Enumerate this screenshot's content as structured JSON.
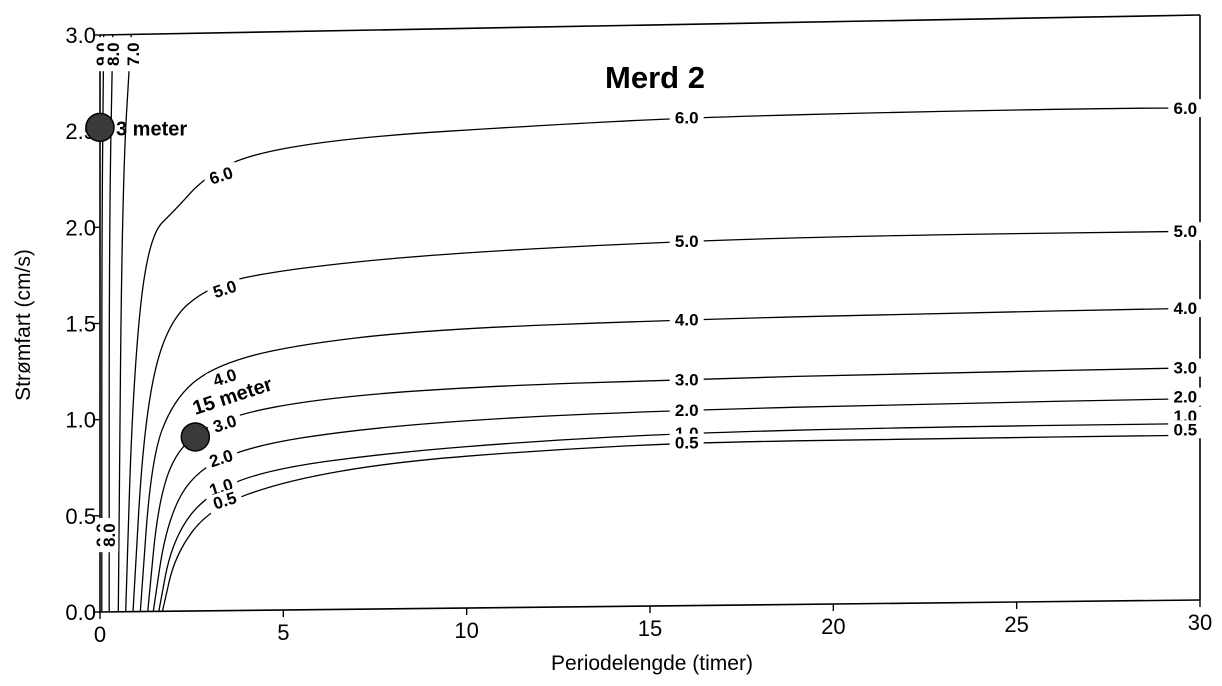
{
  "chart_data": {
    "type": "contour",
    "title": "Merd 2",
    "xlabel": "Periodelengde (timer)",
    "ylabel": "Strømfart (cm/s)",
    "xlim": [
      0,
      30
    ],
    "ylim": [
      0,
      3.0
    ],
    "x_ticks": [
      0,
      5,
      10,
      15,
      20,
      25,
      30
    ],
    "x_tick_labels": [
      "0",
      "5",
      "10",
      "15",
      "20",
      "25",
      "30"
    ],
    "y_ticks": [
      0.0,
      0.5,
      1.0,
      1.5,
      2.0,
      2.5,
      3.0
    ],
    "y_tick_labels": [
      "0.0",
      "0.5",
      "1.0",
      "1.5",
      "2.0",
      "2.5",
      "3.0"
    ],
    "grid": false,
    "contours": [
      {
        "level": "6.0",
        "points": [
          [
            0.7,
            0
          ],
          [
            0.9,
            1.2
          ],
          [
            1.3,
            1.95
          ],
          [
            2.1,
            2.1
          ],
          [
            2.8,
            2.25
          ],
          [
            4,
            2.38
          ],
          [
            7,
            2.47
          ],
          [
            12,
            2.53
          ],
          [
            16,
            2.57
          ],
          [
            22,
            2.6
          ],
          [
            28,
            2.62
          ],
          [
            30,
            2.62
          ]
        ],
        "labels": [
          {
            "text": "6.0",
            "x": 3.3,
            "y": 2.27,
            "angle": -18
          },
          {
            "text": "6.0",
            "x": 16,
            "y": 2.57,
            "angle": 0
          },
          {
            "text": "6.0",
            "x": 29.6,
            "y": 2.62,
            "angle": 0
          }
        ]
      },
      {
        "level": "5.0",
        "points": [
          [
            0.9,
            0
          ],
          [
            1.2,
            1.0
          ],
          [
            1.8,
            1.5
          ],
          [
            3,
            1.7
          ],
          [
            5,
            1.78
          ],
          [
            9,
            1.86
          ],
          [
            16,
            1.93
          ],
          [
            22,
            1.96
          ],
          [
            30,
            1.98
          ]
        ],
        "labels": [
          {
            "text": "5.0",
            "x": 3.4,
            "y": 1.68,
            "angle": -18
          },
          {
            "text": "5.0",
            "x": 16,
            "y": 1.93,
            "angle": 0
          },
          {
            "text": "5.0",
            "x": 29.6,
            "y": 1.98,
            "angle": 0
          }
        ]
      },
      {
        "level": "4.0",
        "points": [
          [
            1.1,
            0
          ],
          [
            1.4,
            0.8
          ],
          [
            2,
            1.1
          ],
          [
            3,
            1.27
          ],
          [
            5,
            1.38
          ],
          [
            9,
            1.47
          ],
          [
            16,
            1.52
          ],
          [
            22,
            1.55
          ],
          [
            30,
            1.58
          ]
        ],
        "labels": [
          {
            "text": "4.0",
            "x": 3.4,
            "y": 1.22,
            "angle": -18
          },
          {
            "text": "4.0",
            "x": 16,
            "y": 1.52,
            "angle": 0
          },
          {
            "text": "4.0",
            "x": 29.6,
            "y": 1.58,
            "angle": 0
          }
        ]
      },
      {
        "level": "3.0",
        "points": [
          [
            1.3,
            0
          ],
          [
            1.6,
            0.6
          ],
          [
            2.2,
            0.88
          ],
          [
            3.5,
            1.02
          ],
          [
            6,
            1.11
          ],
          [
            10,
            1.17
          ],
          [
            16,
            1.21
          ],
          [
            22,
            1.24
          ],
          [
            30,
            1.27
          ]
        ],
        "labels": [
          {
            "text": "3.0",
            "x": 3.4,
            "y": 0.98,
            "angle": -18
          },
          {
            "text": "3.0",
            "x": 16,
            "y": 1.21,
            "angle": 0
          },
          {
            "text": "3.0",
            "x": 29.6,
            "y": 1.27,
            "angle": 0
          }
        ]
      },
      {
        "level": "2.0",
        "points": [
          [
            1.45,
            0
          ],
          [
            1.8,
            0.45
          ],
          [
            2.5,
            0.72
          ],
          [
            4,
            0.86
          ],
          [
            7,
            0.95
          ],
          [
            11,
            1.01
          ],
          [
            16,
            1.05
          ],
          [
            22,
            1.08
          ],
          [
            30,
            1.11
          ]
        ],
        "labels": [
          {
            "text": "2.0",
            "x": 3.3,
            "y": 0.8,
            "angle": -18
          },
          {
            "text": "2.0",
            "x": 16,
            "y": 1.05,
            "angle": 0
          },
          {
            "text": "2.0",
            "x": 29.6,
            "y": 1.12,
            "angle": 0
          }
        ]
      },
      {
        "level": "1.0",
        "points": [
          [
            1.6,
            0
          ],
          [
            1.95,
            0.36
          ],
          [
            2.8,
            0.6
          ],
          [
            4.5,
            0.74
          ],
          [
            8,
            0.83
          ],
          [
            12,
            0.89
          ],
          [
            16,
            0.93
          ],
          [
            22,
            0.96
          ],
          [
            30,
            0.98
          ]
        ],
        "labels": [
          {
            "text": "1.0",
            "x": 3.3,
            "y": 0.65,
            "angle": -18
          },
          {
            "text": "1.0",
            "x": 16,
            "y": 0.93,
            "angle": 0
          },
          {
            "text": "1.0",
            "x": 29.6,
            "y": 1.02,
            "angle": 0
          }
        ]
      },
      {
        "level": "0.5",
        "points": [
          [
            1.7,
            0
          ],
          [
            2.05,
            0.3
          ],
          [
            3,
            0.54
          ],
          [
            5,
            0.68
          ],
          [
            8,
            0.78
          ],
          [
            12,
            0.84
          ],
          [
            16,
            0.88
          ],
          [
            22,
            0.9
          ],
          [
            30,
            0.92
          ]
        ],
        "labels": [
          {
            "text": "0.5",
            "x": 3.4,
            "y": 0.58,
            "angle": -18
          },
          {
            "text": "0.5",
            "x": 16,
            "y": 0.88,
            "angle": 0
          },
          {
            "text": "0.5",
            "x": 29.6,
            "y": 0.95,
            "angle": 0
          }
        ]
      },
      {
        "level": "9.0",
        "points": [
          [
            0.05,
            0
          ],
          [
            0.05,
            2.0
          ],
          [
            0.1,
            3.0
          ]
        ],
        "labels": [
          {
            "text": "9.0",
            "x": 0.05,
            "y": 2.9,
            "angle": -90
          },
          {
            "text": "9.0",
            "x": 0.05,
            "y": 0.4,
            "angle": -90
          }
        ]
      },
      {
        "level": "8.0",
        "points": [
          [
            0.25,
            0
          ],
          [
            0.25,
            2.0
          ],
          [
            0.35,
            3.0
          ]
        ],
        "labels": [
          {
            "text": "8.0",
            "x": 0.35,
            "y": 2.9,
            "angle": -90
          },
          {
            "text": "8.0",
            "x": 0.25,
            "y": 0.4,
            "angle": -90
          }
        ]
      },
      {
        "level": "7.0",
        "points": [
          [
            0.5,
            0
          ],
          [
            0.6,
            2.2
          ],
          [
            0.85,
            3.0
          ]
        ],
        "labels": [
          {
            "text": "7.0",
            "x": 0.9,
            "y": 2.9,
            "angle": -90
          }
        ]
      }
    ],
    "points": [
      {
        "label": "3 meter",
        "x": 0,
        "y": 2.52
      },
      {
        "label": "15 meter",
        "x": 2.6,
        "y": 0.91
      }
    ]
  }
}
